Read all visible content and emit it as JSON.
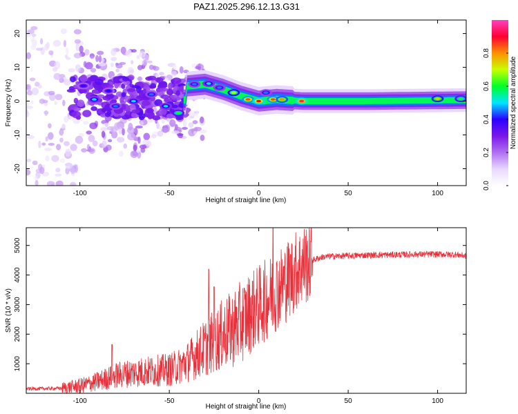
{
  "title": "PAZ1.2025.296.12.13.G31",
  "chart_data": [
    {
      "type": "heatmap",
      "name": "spectrogram",
      "xlabel": "Height of straight line (km)",
      "ylabel": "Frequency (Hz)",
      "xlim": [
        -130,
        116
      ],
      "ylim": [
        -25,
        24
      ],
      "xticks": [
        -100,
        -50,
        0,
        50,
        100
      ],
      "yticks": [
        -20,
        -10,
        0,
        10,
        20
      ],
      "colorbar": {
        "label": "Normalized spectral amplitude",
        "range": [
          0,
          1
        ],
        "ticks": [
          0.0,
          0.2,
          0.4,
          0.6,
          0.8
        ],
        "tick_labels": [
          "0.0",
          "0.2",
          "0.4",
          "0.6",
          "0.8"
        ],
        "colors": [
          "#ffffff",
          "#e8d8ff",
          "#b070f0",
          "#7a18e8",
          "#2a00ff",
          "#00e6ff",
          "#00ff28",
          "#c8ff00",
          "#ff9000",
          "#ff0030",
          "#ff40c0"
        ]
      },
      "ridge": [
        {
          "x": -40,
          "y": 4.5
        },
        {
          "x": -30,
          "y": 5
        },
        {
          "x": -20,
          "y": 3.5
        },
        {
          "x": -10,
          "y": 1.5
        },
        {
          "x": 0,
          "y": 0
        },
        {
          "x": 10,
          "y": 0.5
        },
        {
          "x": 25,
          "y": 0
        },
        {
          "x": 60,
          "y": 0
        },
        {
          "x": 116,
          "y": 0.3
        }
      ],
      "hotspots": [
        {
          "x": -36,
          "y": 5,
          "v": 0.45
        },
        {
          "x": -28,
          "y": 5.2,
          "v": 0.5
        },
        {
          "x": -22,
          "y": 4,
          "v": 0.45
        },
        {
          "x": -14,
          "y": 2.5,
          "v": 0.7
        },
        {
          "x": -6,
          "y": 0.5,
          "v": 0.85
        },
        {
          "x": 0,
          "y": 0,
          "v": 0.9
        },
        {
          "x": 4,
          "y": 2.5,
          "v": 0.45
        },
        {
          "x": 8,
          "y": 0.5,
          "v": 0.85
        },
        {
          "x": 13,
          "y": 0.5,
          "v": 0.8
        },
        {
          "x": 24,
          "y": 0,
          "v": 0.95
        },
        {
          "x": 100,
          "y": 0.7,
          "v": 0.75
        },
        {
          "x": 113,
          "y": 0.7,
          "v": 0.6
        },
        {
          "x": -92,
          "y": 0.5,
          "v": 0.5
        },
        {
          "x": -80,
          "y": -1.5,
          "v": 0.45
        },
        {
          "x": -70,
          "y": 0,
          "v": 0.5
        },
        {
          "x": -60,
          "y": 2,
          "v": 0.45
        },
        {
          "x": -52,
          "y": -1.5,
          "v": 0.5
        },
        {
          "x": -45,
          "y": -3.5,
          "v": 0.6
        },
        {
          "x": -98,
          "y": 4.5,
          "v": 0.4
        },
        {
          "x": -84,
          "y": 3,
          "v": 0.4
        }
      ]
    },
    {
      "type": "line",
      "name": "snr",
      "xlabel": "Height of straight line (km)",
      "ylabel": "SNR (10 * v/v)",
      "xlim": [
        -130,
        116
      ],
      "ylim": [
        0,
        5600
      ],
      "xticks": [
        -100,
        -50,
        0,
        50,
        100
      ],
      "yticks": [
        1000,
        2000,
        3000,
        4000,
        5000
      ],
      "series": [
        {
          "name": "SNR",
          "color": "#e8303a",
          "x": [
            -130,
            -120,
            -110,
            -100,
            -90,
            -80,
            -70,
            -60,
            -50,
            -45,
            -40,
            -35,
            -30,
            -25,
            -20,
            -15,
            -10,
            -5,
            0,
            5,
            10,
            15,
            20,
            25,
            30,
            35,
            40,
            50,
            60,
            70,
            80,
            90,
            100,
            110,
            116
          ],
          "y": [
            150,
            160,
            170,
            250,
            400,
            600,
            700,
            750,
            800,
            900,
            1050,
            1300,
            1550,
            1750,
            2000,
            2150,
            2400,
            2700,
            2950,
            3200,
            3500,
            3750,
            4100,
            4350,
            4500,
            4600,
            4630,
            4650,
            4670,
            4680,
            4690,
            4700,
            4700,
            4690,
            4650
          ]
        }
      ],
      "spikes": [
        {
          "x": -82,
          "y": 1650
        },
        {
          "x": -28,
          "y": 4200
        },
        {
          "x": -25,
          "y": 3600
        },
        {
          "x": 8,
          "y": 5600
        }
      ]
    }
  ]
}
